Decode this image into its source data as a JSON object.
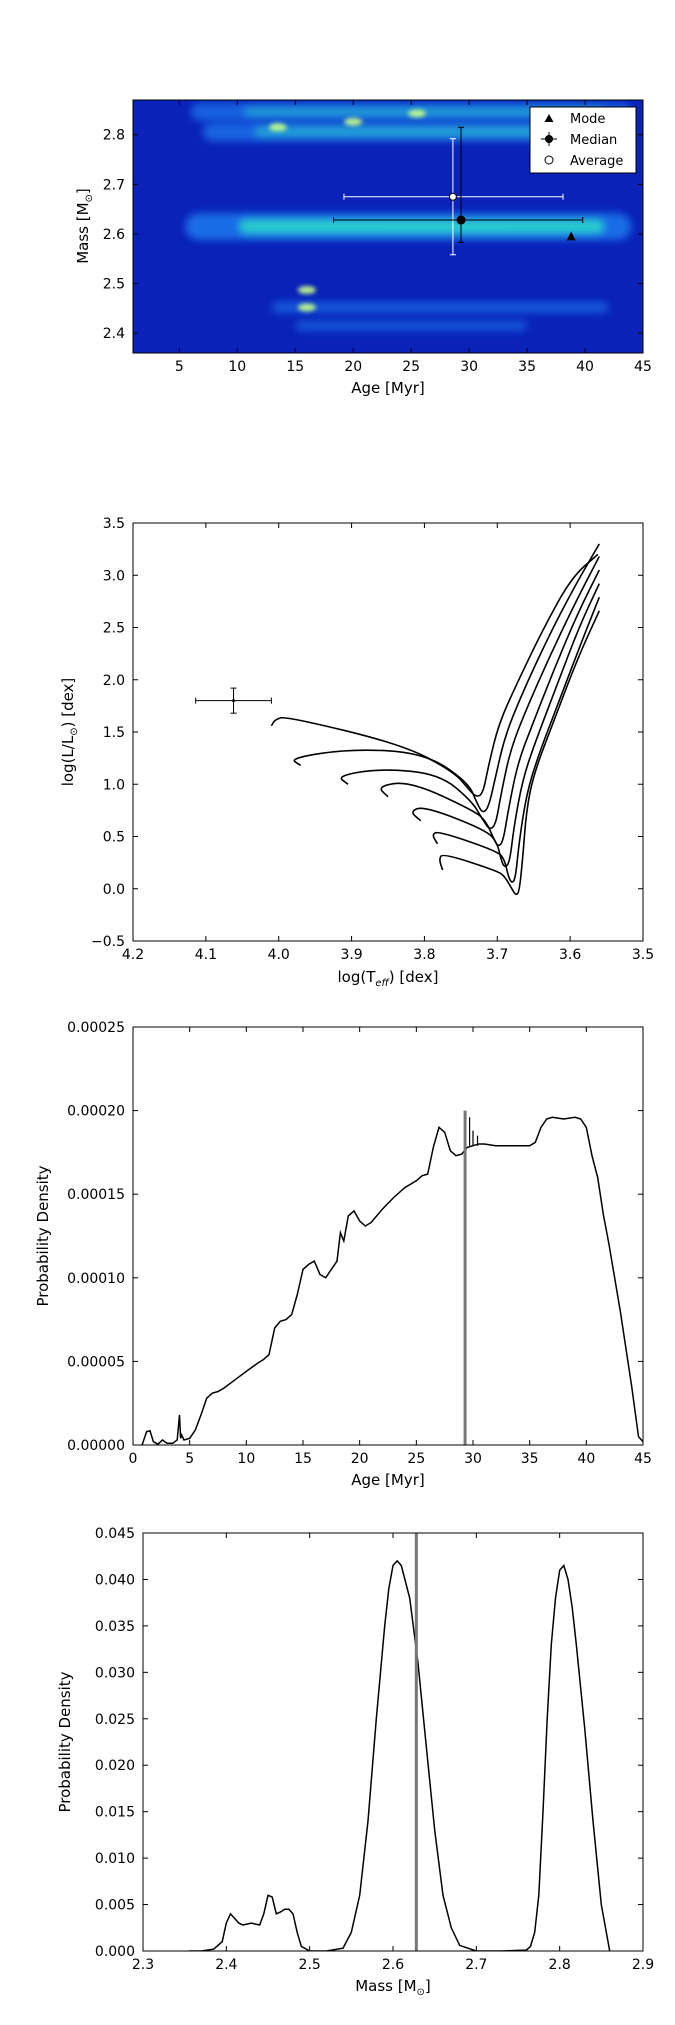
{
  "chart_data": [
    {
      "type": "heatmap",
      "xlabel": "Age [Myr]",
      "ylabel": "Mass [M⊙]",
      "xlim": [
        1,
        45
      ],
      "ylim": [
        2.36,
        2.87
      ],
      "xticks": [
        5,
        10,
        15,
        20,
        25,
        30,
        35,
        40,
        45
      ],
      "yticks": [
        2.4,
        2.5,
        2.6,
        2.7,
        2.8
      ],
      "legend": {
        "position": "top-right",
        "entries": [
          "Mode",
          "Median",
          "Average"
        ]
      },
      "colors": {
        "background": "#0a22b8",
        "band_mid": "#1e7cf0",
        "band_high": "#2ff0c8",
        "peak": "#c8ff8a"
      },
      "bands": [
        {
          "mass": 2.846,
          "age_from": 6,
          "age_to": 44,
          "intensity": 0.45
        },
        {
          "mass": 2.806,
          "age_from": 7,
          "age_to": 44,
          "intensity": 0.5
        },
        {
          "mass": 2.615,
          "age_from": 5.5,
          "age_to": 44,
          "intensity": 0.8
        },
        {
          "mass": 2.452,
          "age_from": 13,
          "age_to": 42,
          "intensity": 0.2
        },
        {
          "mass": 2.415,
          "age_from": 15,
          "age_to": 35,
          "intensity": 0.15
        }
      ],
      "spots": [
        {
          "age": 16,
          "mass": 2.452
        },
        {
          "age": 20,
          "mass": 2.826
        },
        {
          "age": 25.5,
          "mass": 2.843
        },
        {
          "age": 13.5,
          "mass": 2.815
        },
        {
          "age": 16,
          "mass": 2.487
        }
      ],
      "points": {
        "mode": {
          "age": 38.8,
          "mass": 2.595
        },
        "median": {
          "age": 29.3,
          "mass": 2.628,
          "age_err": [
            18.3,
            39.8
          ],
          "mass_err": [
            2.583,
            2.815
          ]
        },
        "average": {
          "age": 28.6,
          "mass": 2.675,
          "age_err": [
            19.2,
            38.1
          ],
          "mass_err": [
            2.558,
            2.792
          ]
        }
      }
    },
    {
      "type": "line",
      "xlabel": "log(T_eff) [dex]",
      "ylabel": "log(L/L⊙) [dex]",
      "xlim": [
        4.2,
        3.5
      ],
      "ylim": [
        -0.5,
        3.5
      ],
      "xticks": [
        4.2,
        4.1,
        4.0,
        3.9,
        3.8,
        3.7,
        3.6,
        3.5
      ],
      "yticks": [
        -0.5,
        0.0,
        0.5,
        1.0,
        1.5,
        2.0,
        2.5,
        3.0,
        3.5
      ],
      "tick_labels_x": [
        "4.2",
        "4.1",
        "4.0",
        "3.9",
        "3.8",
        "3.7",
        "3.6",
        "3.5"
      ],
      "tick_labels_y": [
        "−0.5",
        "0.0",
        "0.5",
        "1.0",
        "1.5",
        "2.0",
        "2.5",
        "3.0",
        "3.5"
      ],
      "star": {
        "logTeff": 4.062,
        "logL": 1.8,
        "xerr": 0.052,
        "yerr": 0.12
      },
      "isochrones": [
        [
          [
            3.775,
            0.18
          ],
          [
            3.78,
            0.28
          ],
          [
            3.775,
            0.34
          ],
          [
            3.7,
            0.17
          ],
          [
            3.69,
            0.12
          ],
          [
            3.68,
            0.0
          ],
          [
            3.675,
            -0.06
          ],
          [
            3.67,
            -0.04
          ],
          [
            3.665,
            0.3
          ],
          [
            3.66,
            0.75
          ],
          [
            3.65,
            1.1
          ],
          [
            3.62,
            1.65
          ],
          [
            3.59,
            2.2
          ],
          [
            3.56,
            2.66
          ]
        ],
        [
          [
            3.782,
            0.43
          ],
          [
            3.79,
            0.52
          ],
          [
            3.78,
            0.55
          ],
          [
            3.7,
            0.36
          ],
          [
            3.69,
            0.28
          ],
          [
            3.685,
            0.12
          ],
          [
            3.68,
            0.05
          ],
          [
            3.675,
            0.1
          ],
          [
            3.67,
            0.45
          ],
          [
            3.66,
            0.9
          ],
          [
            3.645,
            1.25
          ],
          [
            3.615,
            1.8
          ],
          [
            3.585,
            2.35
          ],
          [
            3.56,
            2.79
          ]
        ],
        [
          [
            3.805,
            0.65
          ],
          [
            3.82,
            0.74
          ],
          [
            3.8,
            0.79
          ],
          [
            3.715,
            0.56
          ],
          [
            3.7,
            0.44
          ],
          [
            3.695,
            0.28
          ],
          [
            3.69,
            0.2
          ],
          [
            3.683,
            0.25
          ],
          [
            3.677,
            0.6
          ],
          [
            3.665,
            1.05
          ],
          [
            3.648,
            1.4
          ],
          [
            3.618,
            1.95
          ],
          [
            3.588,
            2.5
          ],
          [
            3.56,
            2.92
          ]
        ],
        [
          [
            3.85,
            0.88
          ],
          [
            3.865,
            0.98
          ],
          [
            3.82,
            1.03
          ],
          [
            3.73,
            0.74
          ],
          [
            3.715,
            0.64
          ],
          [
            3.705,
            0.48
          ],
          [
            3.699,
            0.4
          ],
          [
            3.692,
            0.45
          ],
          [
            3.685,
            0.75
          ],
          [
            3.672,
            1.2
          ],
          [
            3.653,
            1.55
          ],
          [
            3.622,
            2.1
          ],
          [
            3.59,
            2.63
          ],
          [
            3.56,
            3.05
          ]
        ],
        [
          [
            3.905,
            1.0
          ],
          [
            3.92,
            1.08
          ],
          [
            3.86,
            1.15
          ],
          [
            3.78,
            1.1
          ],
          [
            3.735,
            0.84
          ],
          [
            3.72,
            0.66
          ],
          [
            3.71,
            0.56
          ],
          [
            3.702,
            0.62
          ],
          [
            3.695,
            0.9
          ],
          [
            3.682,
            1.33
          ],
          [
            3.66,
            1.72
          ],
          [
            3.627,
            2.24
          ],
          [
            3.592,
            2.75
          ],
          [
            3.56,
            3.18
          ]
        ],
        [
          [
            3.97,
            1.18
          ],
          [
            3.985,
            1.25
          ],
          [
            3.9,
            1.34
          ],
          [
            3.8,
            1.3
          ],
          [
            3.74,
            1.02
          ],
          [
            3.728,
            0.82
          ],
          [
            3.72,
            0.72
          ],
          [
            3.712,
            0.78
          ],
          [
            3.703,
            1.05
          ],
          [
            3.69,
            1.45
          ],
          [
            3.667,
            1.85
          ],
          [
            3.632,
            2.38
          ],
          [
            3.595,
            2.88
          ],
          [
            3.56,
            3.3
          ]
        ],
        [
          [
            4.01,
            1.56
          ],
          [
            4.005,
            1.62
          ],
          [
            3.99,
            1.65
          ],
          [
            3.83,
            1.38
          ],
          [
            3.76,
            1.12
          ],
          [
            3.74,
            0.96
          ],
          [
            3.73,
            0.88
          ],
          [
            3.72,
            0.9
          ],
          [
            3.712,
            1.18
          ],
          [
            3.698,
            1.58
          ],
          [
            3.672,
            1.98
          ],
          [
            3.636,
            2.5
          ],
          [
            3.598,
            2.98
          ],
          [
            3.562,
            3.2
          ]
        ]
      ]
    },
    {
      "type": "line",
      "xlabel": "Age [Myr]",
      "ylabel": "Probability Density",
      "xlim": [
        0,
        45
      ],
      "ylim": [
        0,
        0.00025
      ],
      "xticks": [
        0,
        5,
        10,
        15,
        20,
        25,
        30,
        35,
        40,
        45
      ],
      "yticks": [
        0,
        5e-05,
        0.0001,
        0.00015,
        0.0002,
        0.00025
      ],
      "tick_labels_y": [
        "0.00000",
        "0.00005",
        "0.00010",
        "0.00015",
        "0.00020",
        "0.00025"
      ],
      "vline": 29.3,
      "x": [
        0.8,
        1.2,
        1.5,
        1.8,
        2.2,
        2.6,
        3.0,
        3.5,
        3.9,
        4.1,
        4.2,
        4.3,
        4.5,
        5.0,
        5.5,
        6.0,
        6.5,
        7.0,
        7.5,
        8.0,
        9.0,
        10.0,
        11.0,
        11.5,
        12.0,
        12.5,
        13.0,
        13.5,
        14.0,
        14.5,
        15.0,
        15.5,
        16.0,
        16.5,
        17.0,
        17.5,
        18.0,
        18.3,
        18.6,
        19.0,
        19.5,
        20.0,
        20.5,
        21.0,
        22.0,
        23.0,
        24.0,
        25.0,
        25.5,
        26.0,
        26.5,
        27.0,
        27.5,
        28.0,
        28.5,
        29.0,
        29.5,
        30.0,
        30.5,
        31.0,
        32.0,
        33.0,
        34.0,
        35.0,
        35.5,
        36.0,
        36.5,
        37.0,
        38.0,
        39.0,
        39.5,
        40.0,
        40.5,
        41.0,
        41.5,
        42.0,
        43.0,
        44.0,
        44.6,
        45.0
      ],
      "values": [
        0,
        8e-06,
        8.5e-06,
        2e-06,
        5e-07,
        3e-06,
        1e-06,
        1e-06,
        3e-06,
        1.8e-05,
        4e-06,
        6e-06,
        3e-06,
        4e-06,
        9e-06,
        1.8e-05,
        2.8e-05,
        3.1e-05,
        3.2e-05,
        3.4e-05,
        3.9e-05,
        4.4e-05,
        4.9e-05,
        5.1e-05,
        5.4e-05,
        7e-05,
        7.4e-05,
        7.5e-05,
        7.8e-05,
        9e-05,
        0.000105,
        0.000108,
        0.00011,
        0.000102,
        0.0001,
        0.000105,
        0.00011,
        0.000127,
        0.000122,
        0.000137,
        0.00014,
        0.000134,
        0.000131,
        0.000133,
        0.000141,
        0.000148,
        0.000154,
        0.000158,
        0.000161,
        0.000162,
        0.000178,
        0.00019,
        0.000187,
        0.000176,
        0.000173,
        0.000174,
        0.000178,
        0.000179,
        0.00018,
        0.00018,
        0.000179,
        0.000179,
        0.000179,
        0.000179,
        0.000181,
        0.00019,
        0.000195,
        0.000196,
        0.000195,
        0.000196,
        0.000195,
        0.00019,
        0.000173,
        0.00016,
        0.000138,
        0.00012,
        8e-05,
        3.5e-05,
        5e-06,
        2e-06
      ]
    },
    {
      "type": "line",
      "xlabel": "Mass [M⊙]",
      "ylabel": "Probability Density",
      "xlim": [
        2.3,
        2.9
      ],
      "ylim": [
        0,
        0.045
      ],
      "xticks": [
        2.3,
        2.4,
        2.5,
        2.6,
        2.7,
        2.8,
        2.9
      ],
      "yticks": [
        0,
        0.005,
        0.01,
        0.015,
        0.02,
        0.025,
        0.03,
        0.035,
        0.04,
        0.045
      ],
      "tick_labels_y": [
        "0.000",
        "0.005",
        "0.010",
        "0.015",
        "0.020",
        "0.025",
        "0.030",
        "0.035",
        "0.040",
        "0.045"
      ],
      "vline": 2.628,
      "x": [
        2.355,
        2.37,
        2.385,
        2.395,
        2.4,
        2.405,
        2.41,
        2.415,
        2.42,
        2.43,
        2.44,
        2.445,
        2.45,
        2.455,
        2.46,
        2.465,
        2.47,
        2.475,
        2.48,
        2.485,
        2.49,
        2.5,
        2.52,
        2.54,
        2.55,
        2.56,
        2.57,
        2.58,
        2.59,
        2.595,
        2.6,
        2.605,
        2.61,
        2.62,
        2.63,
        2.64,
        2.65,
        2.66,
        2.67,
        2.68,
        2.7,
        2.73,
        2.76,
        2.765,
        2.77,
        2.775,
        2.78,
        2.785,
        2.79,
        2.795,
        2.8,
        2.805,
        2.81,
        2.815,
        2.82,
        2.83,
        2.84,
        2.85,
        2.86
      ],
      "values": [
        0,
        0,
        0.0002,
        0.001,
        0.003,
        0.004,
        0.0035,
        0.003,
        0.0028,
        0.003,
        0.0028,
        0.004,
        0.006,
        0.0058,
        0.004,
        0.0042,
        0.0045,
        0.0045,
        0.004,
        0.002,
        0.0005,
        0,
        0,
        0.0003,
        0.002,
        0.006,
        0.014,
        0.025,
        0.035,
        0.039,
        0.0415,
        0.042,
        0.0415,
        0.038,
        0.031,
        0.022,
        0.013,
        0.006,
        0.0025,
        0.0006,
        0,
        0,
        0.0001,
        0.0005,
        0.002,
        0.006,
        0.015,
        0.025,
        0.033,
        0.038,
        0.041,
        0.0415,
        0.04,
        0.037,
        0.033,
        0.024,
        0.014,
        0.005,
        0
      ]
    }
  ]
}
